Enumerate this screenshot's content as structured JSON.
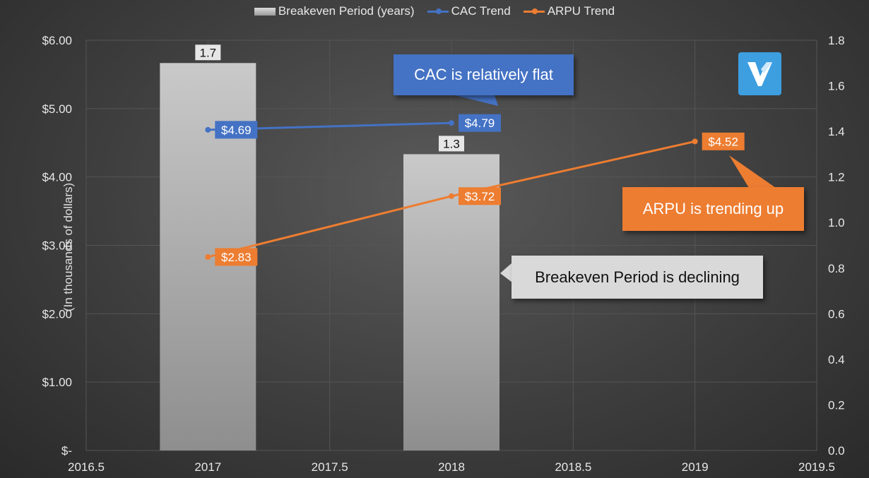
{
  "chart_data": {
    "type": "bar",
    "legend": [
      {
        "name": "Breakeven Period (years)",
        "kind": "bar",
        "color": "#bdbdbd"
      },
      {
        "name": "CAC Trend",
        "kind": "line",
        "color": "#4472c4"
      },
      {
        "name": "ARPU Trend",
        "kind": "line",
        "color": "#ed7d31"
      }
    ],
    "legend_position": "top",
    "ylabel": "(In thousands of dollars)",
    "x_ticks": [
      "2016.5",
      "2017",
      "2017.5",
      "2018",
      "2018.5",
      "2019",
      "2019.5"
    ],
    "xlim": [
      2016.5,
      2019.5
    ],
    "y_left_ticks": [
      "$6.00",
      "$5.00",
      "$4.00",
      "$3.00",
      "$2.00",
      "$1.00",
      "$-"
    ],
    "ylim_left": [
      0,
      6
    ],
    "y_right_ticks": [
      "1.8",
      "1.6",
      "1.4",
      "1.2",
      "1.0",
      "0.8",
      "0.6",
      "0.4",
      "0.2",
      "0.0"
    ],
    "ylim_right": [
      0,
      1.8
    ],
    "grid": true,
    "bars": [
      {
        "x": 2017,
        "value": 1.7,
        "label": "1.7"
      },
      {
        "x": 2018,
        "value": 1.3,
        "label": "1.3"
      }
    ],
    "series": [
      {
        "name": "CAC Trend",
        "color": "#4472c4",
        "points": [
          {
            "x": 2017,
            "y": 4.69,
            "label": "$4.69"
          },
          {
            "x": 2018,
            "y": 4.79,
            "label": "$4.79"
          }
        ]
      },
      {
        "name": "ARPU Trend",
        "color": "#ed7d31",
        "points": [
          {
            "x": 2017,
            "y": 2.83,
            "label": "$2.83"
          },
          {
            "x": 2018,
            "y": 3.72,
            "label": "$3.72"
          },
          {
            "x": 2019,
            "y": 4.52,
            "label": "$4.52"
          }
        ]
      }
    ],
    "annotations": [
      {
        "text": "CAC is relatively flat",
        "color": "#4472c4"
      },
      {
        "text": "ARPU is trending up",
        "color": "#ed7d31"
      },
      {
        "text": "Breakeven Period is declining",
        "color": "#d9d9d9"
      }
    ]
  },
  "logo": {
    "name": "v-logo-icon",
    "color": "#3d9ee0"
  }
}
